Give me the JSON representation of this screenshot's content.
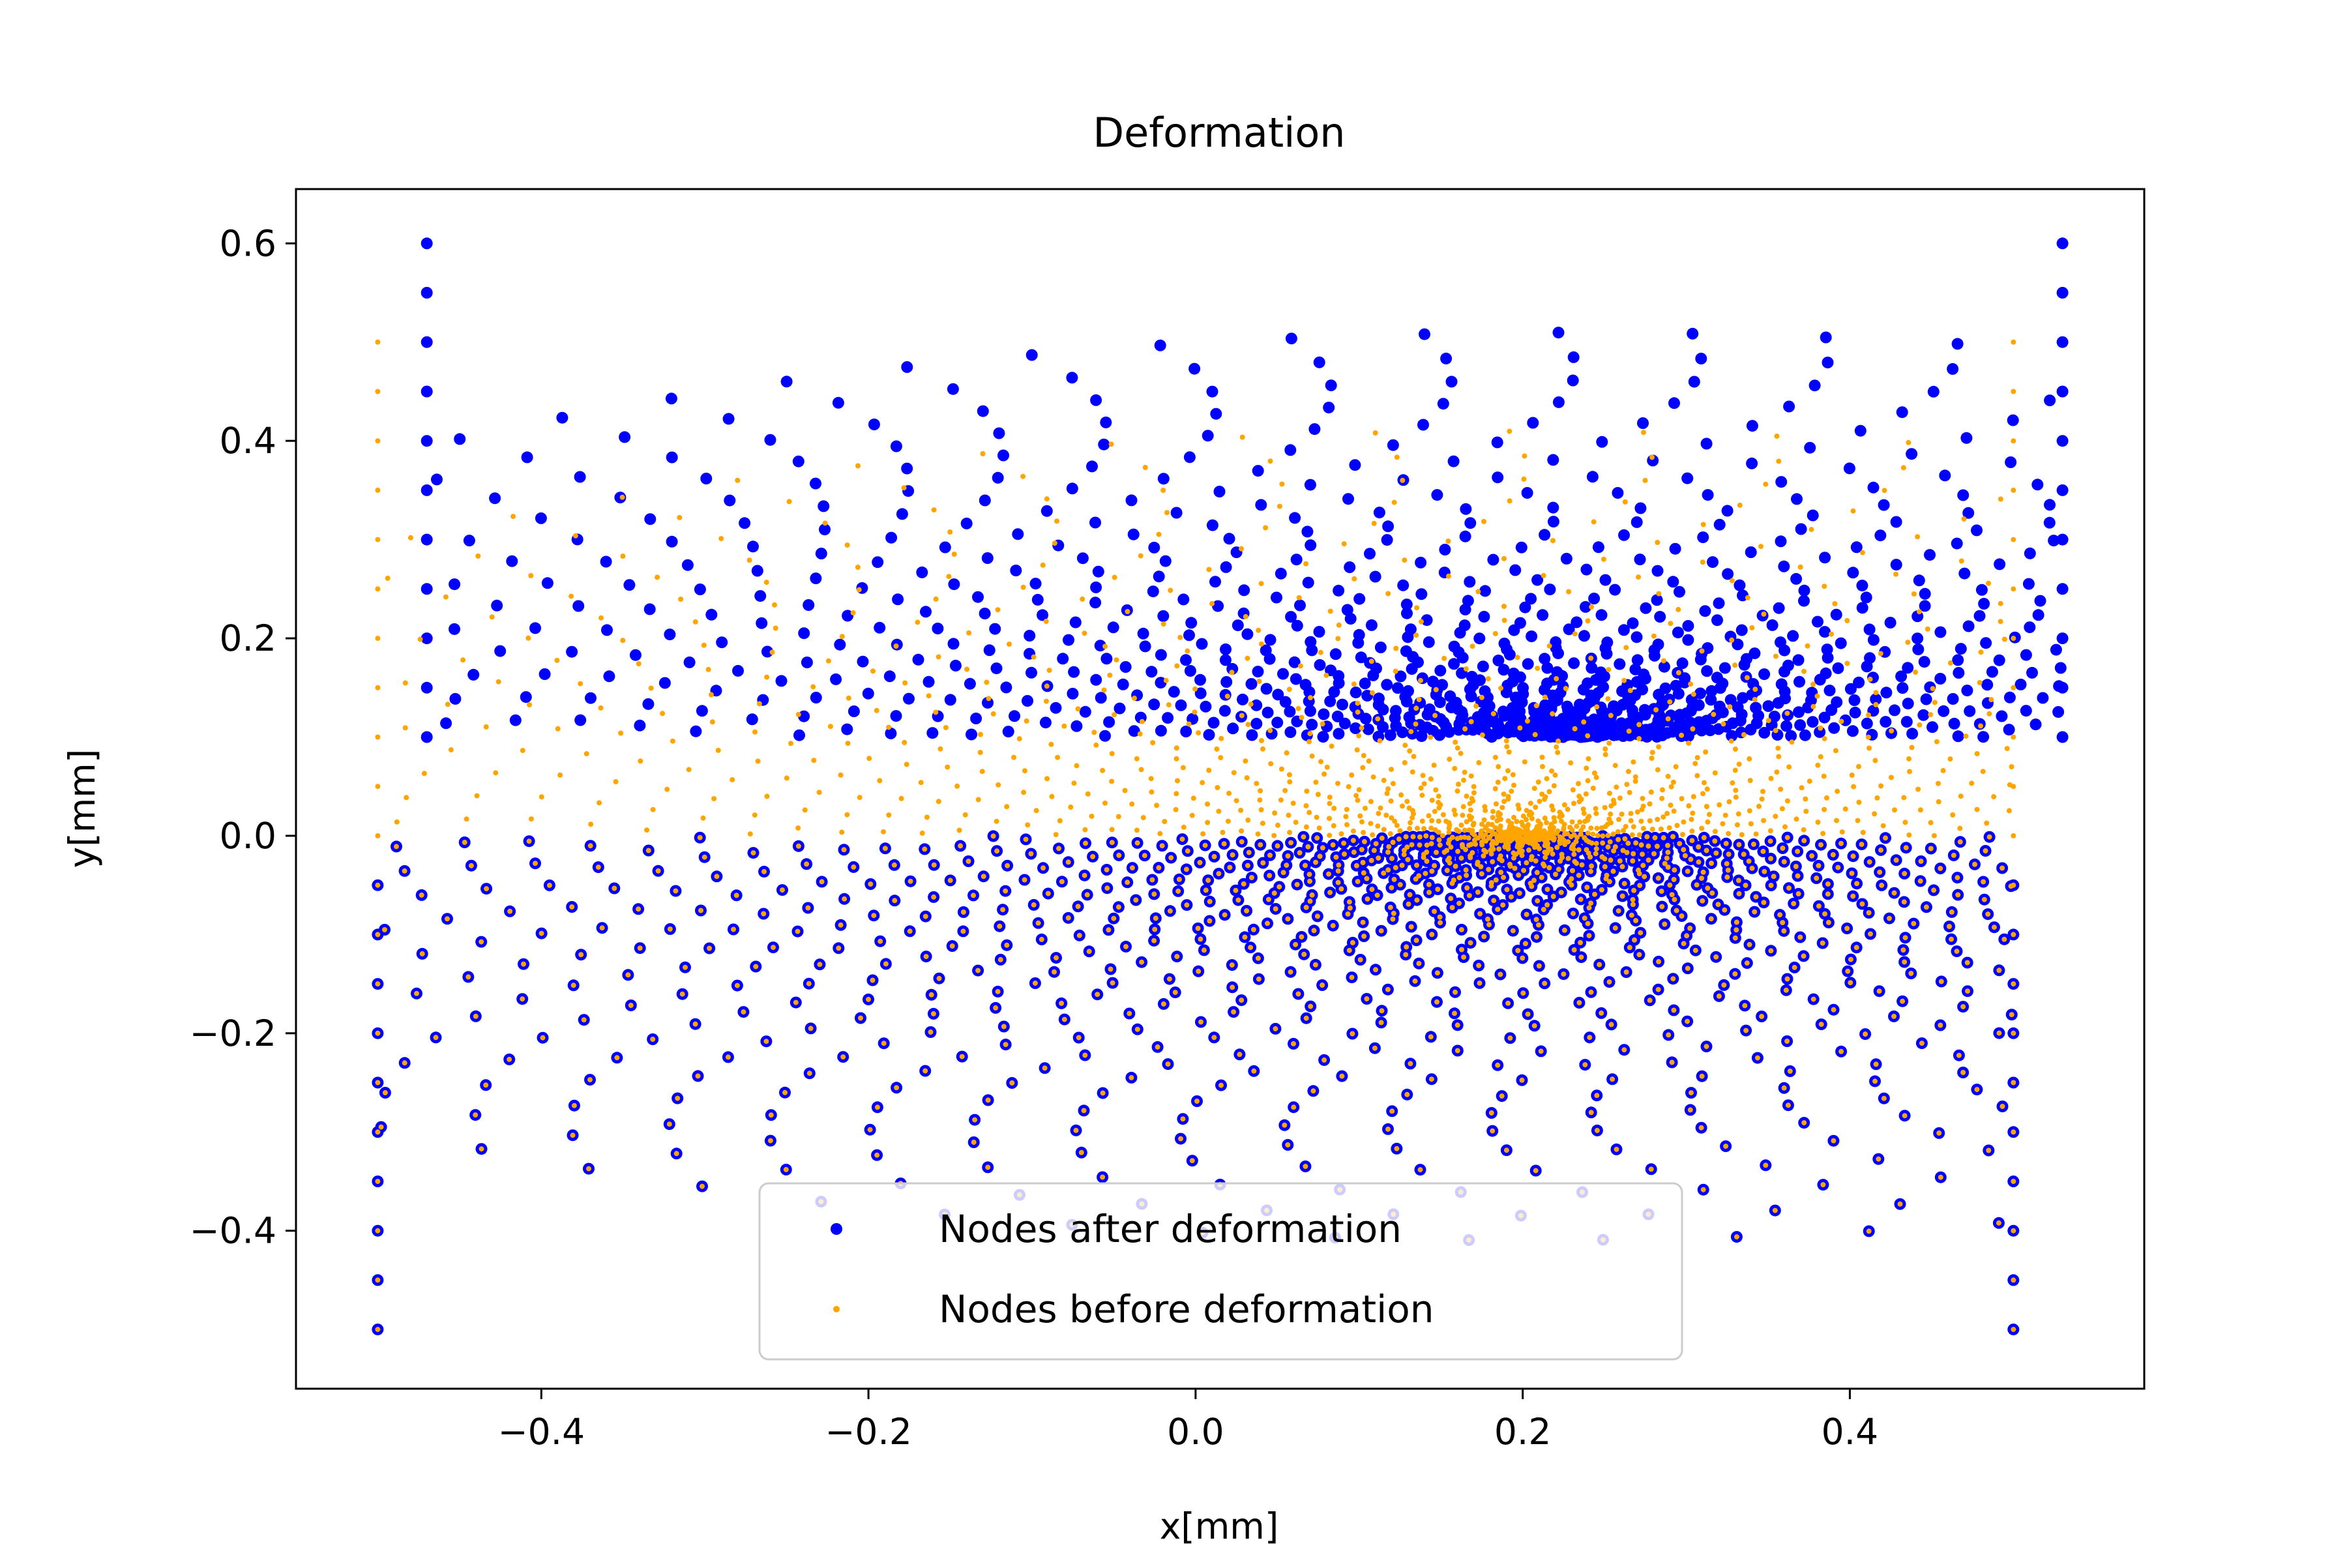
{
  "chart_data": {
    "type": "scatter",
    "title": "Deformation",
    "xlabel": "x[mm]",
    "ylabel": "y[mm]",
    "xlim": [
      -0.55,
      0.58
    ],
    "ylim": [
      -0.56,
      0.655
    ],
    "xticks": [
      -0.4,
      -0.2,
      0.0,
      0.2,
      0.4
    ],
    "xtick_labels": [
      "−0.4",
      "−0.2",
      "0.0",
      "0.2",
      "0.4"
    ],
    "yticks": [
      -0.4,
      -0.2,
      0.0,
      0.2,
      0.4,
      0.6
    ],
    "ytick_labels": [
      "−0.4",
      "−0.2",
      "0.0",
      "0.2",
      "0.4",
      "0.6"
    ],
    "grid": false,
    "legend_position": "lower-center",
    "series": [
      {
        "name": "Nodes after deformation",
        "color": "#0000ff",
        "marker": "large-dot",
        "description_regions": [
          {
            "x_range": [
              -0.47,
              0.53
            ],
            "y_range": [
              0.1,
              0.6
            ],
            "note": "upper block, shifted and stretched"
          },
          {
            "x_range": [
              -0.5,
              0.5
            ],
            "y_range": [
              -0.5,
              0.0
            ],
            "note": "lower block, unchanged"
          }
        ]
      },
      {
        "name": "Nodes before deformation",
        "color": "#ffa500",
        "marker": "small-dot",
        "description_regions": [
          {
            "x_range": [
              -0.5,
              0.5
            ],
            "y_range": [
              -0.5,
              0.5
            ],
            "note": "original square domain, refined near y=0, x in [0, 0.5]"
          }
        ]
      }
    ]
  }
}
